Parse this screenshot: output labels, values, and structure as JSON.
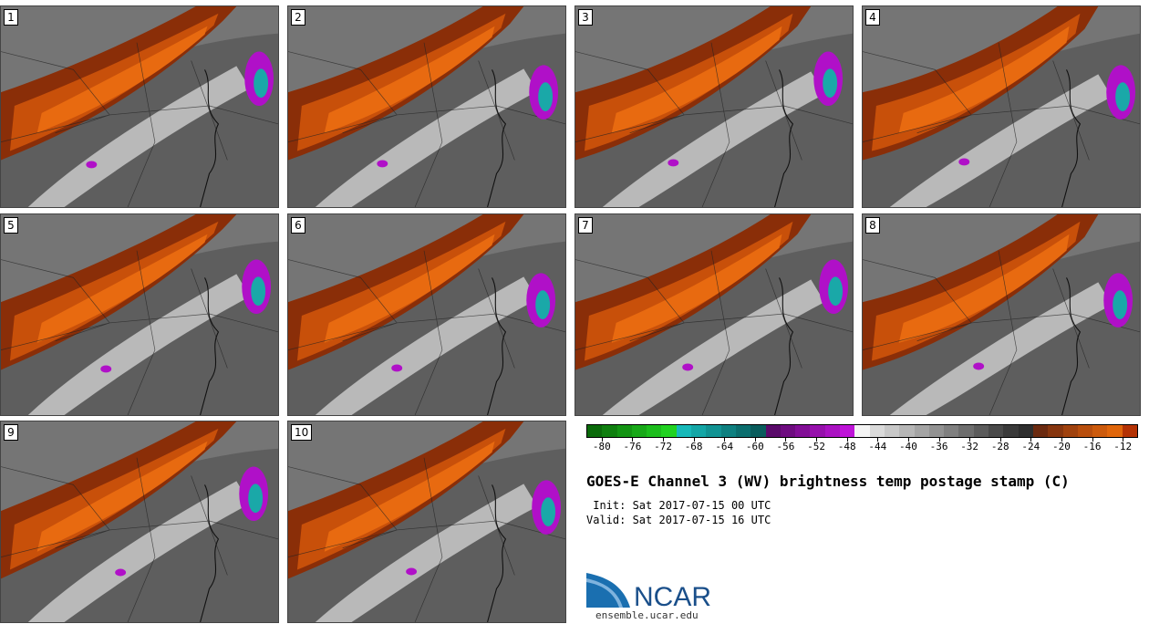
{
  "figure": {
    "title": "GOES-E Channel 3 (WV) brightness temp postage stamp (C)",
    "init_label": " Init: Sat 2017-07-15 00 UTC",
    "valid_label": "Valid: Sat 2017-07-15 16 UTC"
  },
  "panels": [
    {
      "number": "1"
    },
    {
      "number": "2"
    },
    {
      "number": "3"
    },
    {
      "number": "4"
    },
    {
      "number": "5"
    },
    {
      "number": "6"
    },
    {
      "number": "7"
    },
    {
      "number": "8"
    },
    {
      "number": "9"
    },
    {
      "number": "10"
    }
  ],
  "colorbar": {
    "colors": [
      "#0a6a0a",
      "#0f7f0f",
      "#139413",
      "#18a818",
      "#1cbd1c",
      "#21d221",
      "#17b9b9",
      "#14a6a6",
      "#119393",
      "#0e8080",
      "#0b6e6e",
      "#095c5c",
      "#5a0a6a",
      "#6e0c80",
      "#820e96",
      "#9610ac",
      "#aa12c2",
      "#be14d8",
      "#f4f4f4",
      "#dadada",
      "#c8c8c8",
      "#b6b6b6",
      "#a4a4a4",
      "#929292",
      "#808080",
      "#6e6e6e",
      "#5c5c5c",
      "#4a4a4a",
      "#3a3a3a",
      "#2e2e2e",
      "#6b2a10",
      "#87360f",
      "#a0420e",
      "#b84e0d",
      "#cc5a0c",
      "#e0660b",
      "#b43204"
    ],
    "tick_labels": [
      "-80",
      "-76",
      "-72",
      "-68",
      "-64",
      "-60",
      "-56",
      "-52",
      "-48",
      "-44",
      "-40",
      "-36",
      "-32",
      "-28",
      "-24",
      "-20",
      "-16",
      "-12"
    ],
    "tick_values": [
      -80,
      -76,
      -72,
      -68,
      -64,
      -60,
      -56,
      -52,
      -48,
      -44,
      -40,
      -36,
      -32,
      -28,
      -24,
      -20,
      -16,
      -12
    ],
    "range": [
      -82,
      -10
    ]
  },
  "logo": {
    "text": "NCAR",
    "url": "ensemble.ucar.edu",
    "colors": {
      "primary": "#1a6fb0",
      "light": "#7fb3de",
      "text": "#1a4f8a"
    }
  },
  "colors": {
    "band_dark": "#8a2e08",
    "band_mid": "#c8500a",
    "band_bright": "#e86a10",
    "moist_light": "#c9c9c9",
    "background_gray": "#5e5e5e",
    "convection_magenta": "#b010c8",
    "convection_teal": "#1aa8a8"
  }
}
